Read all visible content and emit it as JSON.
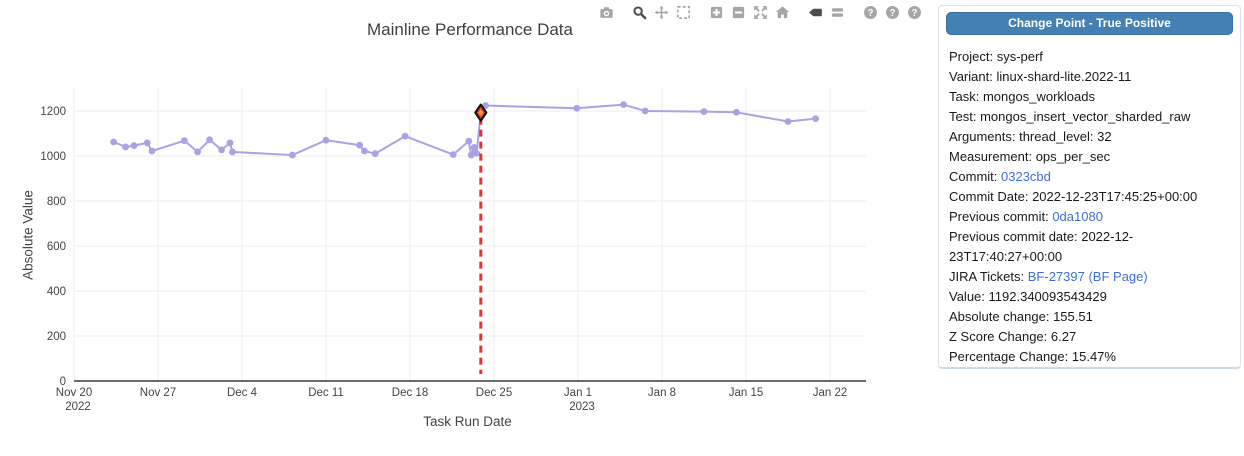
{
  "toolbar": {
    "icons": [
      {
        "name": "camera-icon",
        "group_start": false
      },
      {
        "name": "zoom-icon",
        "group_start": true,
        "dark": true
      },
      {
        "name": "pan-icon"
      },
      {
        "name": "box-select-icon"
      },
      {
        "name": "zoom-in-icon",
        "group_start": true
      },
      {
        "name": "zoom-out-icon"
      },
      {
        "name": "autoscale-icon"
      },
      {
        "name": "reset-axes-icon"
      },
      {
        "name": "toggle-spikelines-icon",
        "group_start": true,
        "dark": true
      },
      {
        "name": "hover-compare-icon"
      },
      {
        "name": "help-1-icon",
        "group_start": true
      },
      {
        "name": "help-2-icon"
      },
      {
        "name": "help-3-icon"
      },
      {
        "name": "plotly-logo-icon",
        "group_start": true
      }
    ]
  },
  "chart_data": {
    "type": "line",
    "title": "Mainline Performance Data",
    "xlabel": "Task Run Date",
    "ylabel": "Absolute Value",
    "grid": true,
    "legend": "none",
    "x_axis_start_date": "2022-11-20",
    "x_ticks": [
      {
        "day": 0,
        "label": "Nov 20",
        "sub": "2022"
      },
      {
        "day": 7,
        "label": "Nov 27"
      },
      {
        "day": 14,
        "label": "Dec 4"
      },
      {
        "day": 21,
        "label": "Dec 11"
      },
      {
        "day": 28,
        "label": "Dec 18"
      },
      {
        "day": 35,
        "label": "Dec 25"
      },
      {
        "day": 42,
        "label": "Jan 1",
        "sub": "2023"
      },
      {
        "day": 49,
        "label": "Jan 8"
      },
      {
        "day": 56,
        "label": "Jan 15"
      },
      {
        "day": 63,
        "label": "Jan 22"
      }
    ],
    "y_ticks": [
      0,
      200,
      400,
      600,
      800,
      1000,
      1200
    ],
    "ylim": [
      0,
      1302
    ],
    "xlim_days": [
      0,
      66
    ],
    "series": [
      {
        "name": "absolute-value",
        "color": "#aaa2e4",
        "points": [
          [
            3.3,
            1062
          ],
          [
            4.3,
            1040
          ],
          [
            5.0,
            1046
          ],
          [
            6.1,
            1058
          ],
          [
            6.5,
            1022
          ],
          [
            9.2,
            1068
          ],
          [
            10.3,
            1018
          ],
          [
            11.3,
            1072
          ],
          [
            12.3,
            1027
          ],
          [
            13.0,
            1058
          ],
          [
            13.2,
            1018
          ],
          [
            18.2,
            1004
          ],
          [
            21.0,
            1070
          ],
          [
            23.8,
            1048
          ],
          [
            24.2,
            1022
          ],
          [
            25.1,
            1010
          ],
          [
            27.6,
            1088
          ],
          [
            31.6,
            1006
          ],
          [
            32.9,
            1066
          ],
          [
            33.1,
            1004
          ],
          [
            33.35,
            1038
          ],
          [
            33.55,
            1012
          ],
          [
            33.9,
            1192.34
          ],
          [
            34.3,
            1224
          ],
          [
            41.9,
            1212
          ],
          [
            45.8,
            1228
          ],
          [
            47.6,
            1200
          ],
          [
            52.5,
            1197
          ],
          [
            55.2,
            1194
          ],
          [
            59.5,
            1153
          ],
          [
            61.8,
            1166
          ]
        ]
      }
    ],
    "change_point": {
      "day": 33.9,
      "value": 1192.34,
      "marker": "diamond",
      "marker_fill": "#e0492a",
      "marker_inner": "#f59b3c",
      "marker_stroke": "#151515",
      "dashed_line_color": "#e3352b"
    },
    "colors": {
      "grid": "#ececec",
      "axis_line": "#3a3a3a",
      "tick_text": "#444444"
    }
  },
  "panel": {
    "header": "Change Point - True Positive",
    "fields": [
      {
        "label": "Project: ",
        "value": "sys-perf"
      },
      {
        "label": "Variant: ",
        "value": "linux-shard-lite.2022-11"
      },
      {
        "label": "Task: ",
        "value": "mongos_workloads"
      },
      {
        "label": "Test: ",
        "value": "mongos_insert_vector_sharded_raw"
      },
      {
        "label": "Arguments: ",
        "value": "thread_level: 32"
      },
      {
        "label": "Measurement: ",
        "value": "ops_per_sec"
      },
      {
        "label": "Commit: ",
        "value": "0323cbd",
        "link": true
      },
      {
        "label": "Commit Date: ",
        "value": "2022-12-23T17:45:25+00:00"
      },
      {
        "label": "Previous commit: ",
        "value": "0da1080",
        "link": true
      },
      {
        "label": "Previous commit date: ",
        "value": "2022-12-23T17:40:27+00:00"
      },
      {
        "label": "JIRA Tickets: ",
        "links": [
          "BF-27397",
          "(BF Page)"
        ]
      },
      {
        "label": "Value: ",
        "value": "1192.340093543429"
      },
      {
        "label": "Absolute change: ",
        "value": "155.51"
      },
      {
        "label": "Z Score Change: ",
        "value": "6.27"
      },
      {
        "label": "Percentage Change: ",
        "value": "15.47%"
      }
    ]
  }
}
